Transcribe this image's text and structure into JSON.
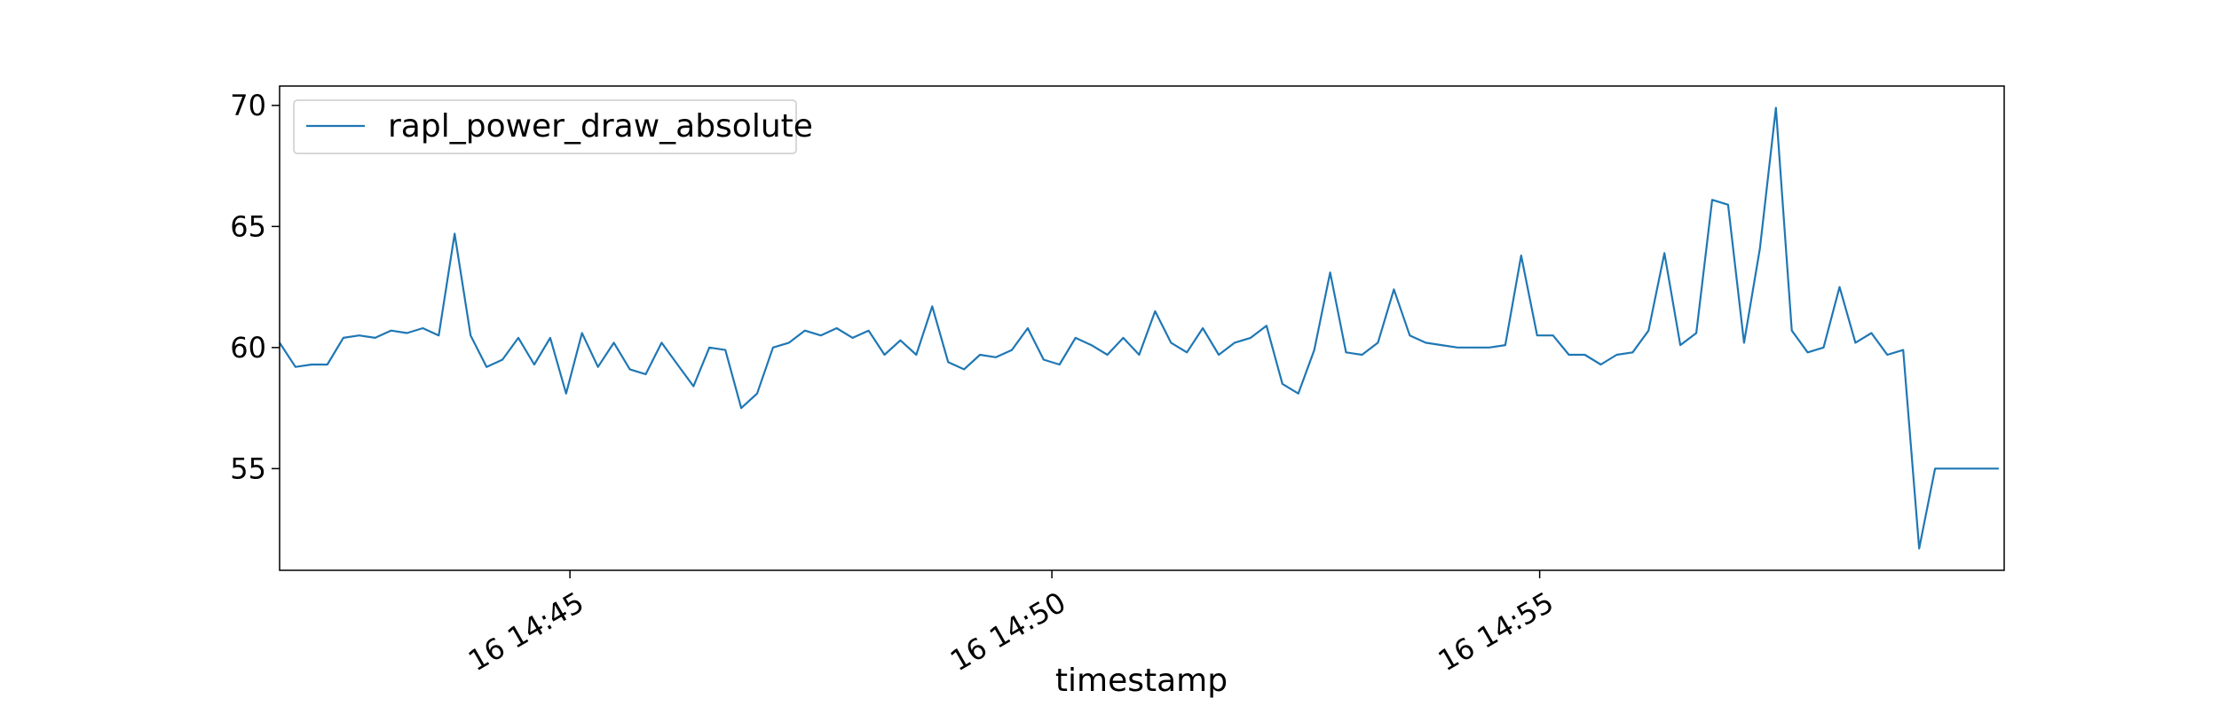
{
  "colors": {
    "series_line": "#1f77b4",
    "axes": "#000000",
    "legend_border": "#cccccc",
    "background": "#ffffff"
  },
  "chart_data": {
    "type": "line",
    "title": "",
    "xlabel": "timestamp",
    "ylabel": "",
    "grid": false,
    "legend_position": "top-left",
    "x_unit": "minutes",
    "xlim": [
      14.7,
      14.997
    ],
    "ylim": [
      50.8,
      70.8
    ],
    "x_ticks": [
      {
        "value": 14.75,
        "label": "16 14:45"
      },
      {
        "value": 14.833,
        "label": "16 14:50"
      },
      {
        "value": 14.917,
        "label": "16 14:55"
      }
    ],
    "y_ticks": [
      {
        "value": 55,
        "label": "55"
      },
      {
        "value": 60,
        "label": "60"
      },
      {
        "value": 65,
        "label": "65"
      },
      {
        "value": 70,
        "label": "70"
      }
    ],
    "series": [
      {
        "name": "rapl_power_draw_absolute",
        "x": [
          14.7,
          14.70274,
          14.70548,
          14.70822,
          14.71097,
          14.71371,
          14.71645,
          14.71919,
          14.72193,
          14.72467,
          14.72741,
          14.73015,
          14.7329,
          14.73564,
          14.73838,
          14.74112,
          14.74386,
          14.7466,
          14.74934,
          14.75208,
          14.75483,
          14.75757,
          14.76031,
          14.76305,
          14.76579,
          14.76853,
          14.77127,
          14.77401,
          14.77676,
          14.7795,
          14.78224,
          14.78498,
          14.78772,
          14.79046,
          14.7932,
          14.79594,
          14.79869,
          14.80143,
          14.80417,
          14.80691,
          14.80965,
          14.81239,
          14.81513,
          14.81787,
          14.82062,
          14.82336,
          14.8261,
          14.82884,
          14.83158,
          14.83432,
          14.83706,
          14.8398,
          14.84255,
          14.84529,
          14.84803,
          14.85077,
          14.85351,
          14.85625,
          14.85899,
          14.86173,
          14.86448,
          14.86722,
          14.86996,
          14.8727,
          14.87544,
          14.87818,
          14.88092,
          14.88366,
          14.88641,
          14.88915,
          14.89189,
          14.89463,
          14.89737,
          14.90011,
          14.90285,
          14.90559,
          14.90834,
          14.91108,
          14.91382,
          14.91656,
          14.9193,
          14.92204,
          14.92478,
          14.92752,
          14.93027,
          14.93301,
          14.93575,
          14.93849,
          14.94123,
          14.94397,
          14.94671,
          14.94945,
          14.9522,
          14.95494,
          14.95768,
          14.96042,
          14.96316,
          14.9659,
          14.96864,
          14.97138,
          14.97413,
          14.97687,
          14.97961,
          14.98235,
          14.98509,
          14.98783,
          14.99057,
          14.99331,
          14.99606,
          14.9988
        ],
        "y": [
          60.2,
          59.2,
          59.3,
          59.3,
          60.4,
          60.5,
          60.4,
          60.7,
          60.6,
          60.8,
          60.5,
          64.7,
          60.5,
          59.2,
          59.5,
          60.4,
          59.3,
          60.4,
          58.1,
          60.6,
          59.2,
          60.2,
          59.1,
          58.9,
          60.2,
          59.3,
          58.4,
          60.0,
          59.9,
          57.5,
          58.1,
          60.0,
          60.2,
          60.7,
          60.5,
          60.8,
          60.4,
          60.7,
          59.7,
          60.3,
          59.7,
          61.7,
          59.4,
          59.1,
          59.7,
          59.6,
          59.9,
          60.8,
          59.5,
          59.3,
          60.4,
          60.1,
          59.7,
          60.4,
          59.7,
          61.5,
          60.2,
          59.8,
          60.8,
          59.7,
          60.2,
          60.4,
          60.9,
          58.5,
          58.1,
          59.9,
          63.1,
          59.8,
          59.7,
          60.2,
          62.4,
          60.5,
          60.2,
          60.1,
          60.0,
          60.0,
          60.0,
          60.1,
          63.8,
          60.5,
          60.5,
          59.7,
          59.7,
          59.3,
          59.7,
          59.8,
          60.7,
          63.9,
          60.1,
          60.6,
          66.1,
          65.9,
          60.2,
          64.1,
          69.9,
          60.7,
          59.8,
          60.0,
          62.5,
          60.2,
          60.6,
          59.7,
          59.9,
          51.7,
          55.0,
          55.0,
          55.0,
          55.0,
          55.0,
          55.0
        ]
      }
    ]
  }
}
